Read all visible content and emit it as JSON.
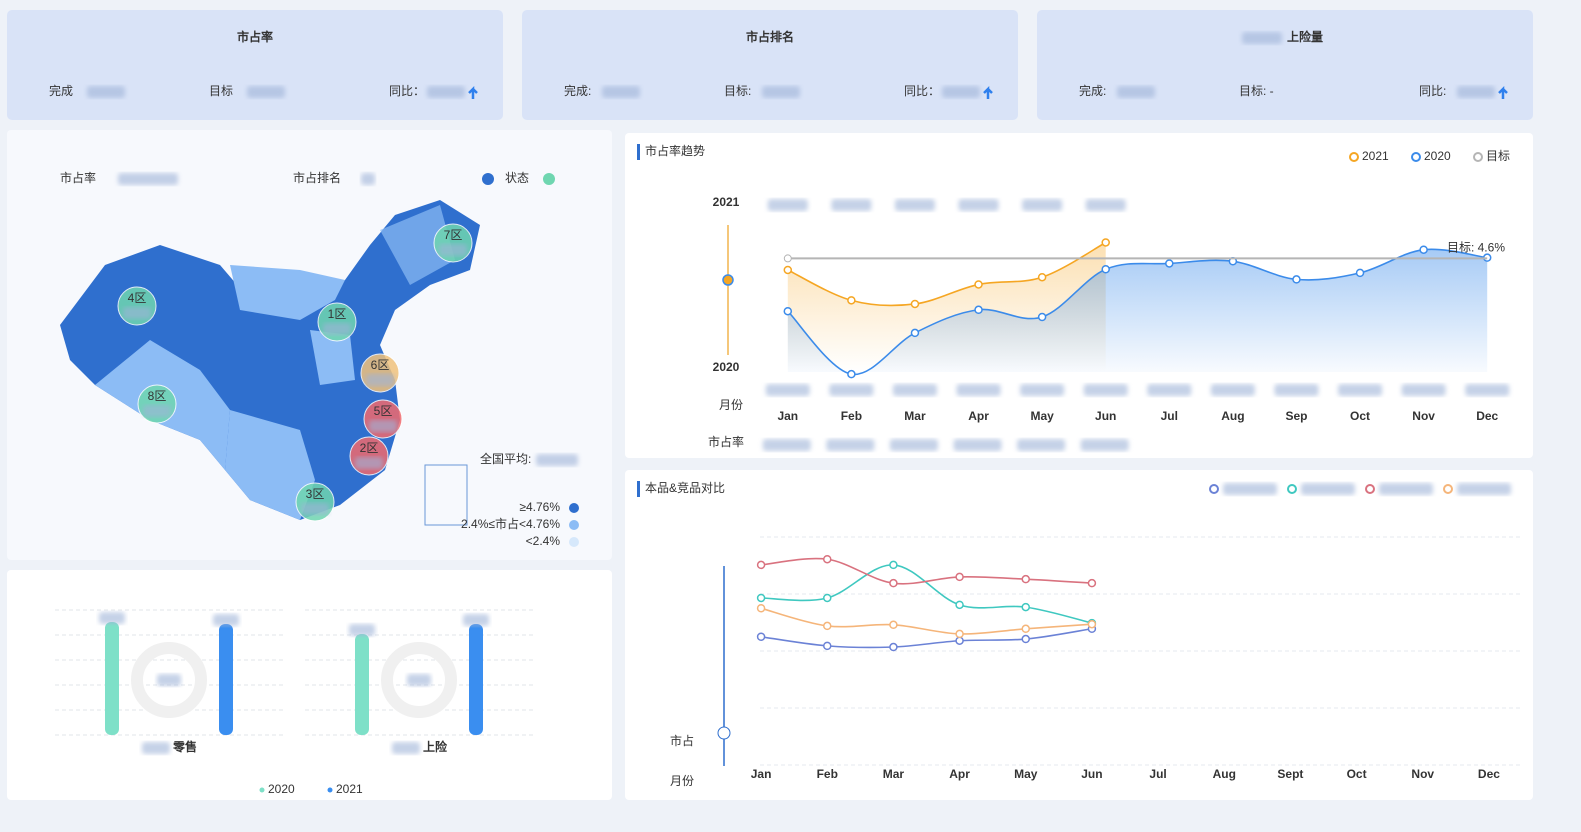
{
  "kpi_cards": [
    {
      "title": "市占率",
      "fields": [
        "完成",
        "目标",
        "同比："
      ]
    },
    {
      "title": "市占排名",
      "fields": [
        "完成:",
        "目标:",
        "同比："
      ]
    },
    {
      "title": "上险量",
      "fields": [
        "完成:",
        "目标: -",
        "同比:"
      ]
    }
  ],
  "map_panel": {
    "labels": [
      "市占率",
      "市占排名",
      "状态"
    ],
    "regions": [
      {
        "name": "7区",
        "color": "#6fd6b0"
      },
      {
        "name": "4区",
        "color": "#6fd6b0"
      },
      {
        "name": "1区",
        "color": "#6fd6b0"
      },
      {
        "name": "6区",
        "color": "#f0c27c"
      },
      {
        "name": "8区",
        "color": "#6fd6b0"
      },
      {
        "name": "5区",
        "color": "#f06a6e"
      },
      {
        "name": "2区",
        "color": "#f06a6e"
      },
      {
        "name": "3区",
        "color": "#6fd6b0"
      }
    ],
    "national_avg": "全国平均:",
    "legend": [
      {
        "label": "≥4.76%",
        "color": "#2f6fce"
      },
      {
        "label": "2.4%≤市占<4.76%",
        "color": "#8cbcf5"
      },
      {
        "label": "<2.4%",
        "color": "#d6e8fb"
      }
    ]
  },
  "chart_data": [
    {
      "type": "line",
      "title": "市占率趋势",
      "categories": [
        "Jan",
        "Feb",
        "Mar",
        "Apr",
        "May",
        "Jun",
        "Jul",
        "Aug",
        "Sep",
        "Oct",
        "Nov",
        "Dec"
      ],
      "series": [
        {
          "name": "2021",
          "color": "#f5a623",
          "values": [
            4.44,
            4.02,
            3.97,
            4.24,
            4.34,
            4.82,
            null,
            null,
            null,
            null,
            null,
            null
          ]
        },
        {
          "name": "2020",
          "color": "#3b8bea",
          "values": [
            3.87,
            3.0,
            3.57,
            3.89,
            3.79,
            4.45,
            4.53,
            4.56,
            4.31,
            4.4,
            4.72,
            4.61
          ]
        },
        {
          "name": "目标",
          "color": "#b5b5b5",
          "values": [
            4.6,
            4.6,
            4.6,
            4.6,
            4.6,
            4.6,
            4.6,
            4.6,
            4.6,
            4.6,
            4.6,
            4.6
          ]
        }
      ],
      "annotations": [
        "目标: 4.6%"
      ],
      "slider_labels": [
        "2021",
        "2020",
        "月份",
        "市占率"
      ],
      "ylim": [
        2.85,
        5.2
      ]
    },
    {
      "type": "line",
      "title": "本品&竞品对比",
      "categories": [
        "Jan",
        "Feb",
        "Mar",
        "Apr",
        "May",
        "Jun",
        "Jul",
        "Aug",
        "Sept",
        "Oct",
        "Nov",
        "Dec"
      ],
      "series": [
        {
          "color": "#6b82d6",
          "values": [
            2.25,
            2.09,
            2.07,
            2.18,
            2.21,
            2.39,
            null,
            null,
            null,
            null,
            null,
            null
          ]
        },
        {
          "color": "#3fc8c0",
          "values": [
            2.93,
            2.93,
            3.51,
            2.81,
            2.77,
            2.49,
            null,
            null,
            null,
            null,
            null,
            null
          ]
        },
        {
          "color": "#d9727f",
          "values": [
            3.51,
            3.61,
            3.19,
            3.3,
            3.26,
            3.19,
            null,
            null,
            null,
            null,
            null,
            null
          ]
        },
        {
          "color": "#f5b57a",
          "values": [
            2.75,
            2.44,
            2.46,
            2.3,
            2.39,
            2.47,
            null,
            null,
            null,
            null,
            null,
            null
          ]
        }
      ],
      "slider_labels": [
        "市占",
        "月份"
      ],
      "ylim": [
        0,
        4
      ],
      "yticks": [
        0,
        1,
        2,
        3,
        4
      ],
      "grid": true
    },
    {
      "type": "bar",
      "categories": [
        "零售",
        "上险"
      ],
      "series": [
        {
          "name": "2020",
          "color": "#7ee0c8",
          "values": [
            113,
            101
          ]
        },
        {
          "name": "2021",
          "color": "#3a8ef0",
          "values": [
            111,
            111
          ]
        }
      ],
      "ylim": [
        0,
        125
      ],
      "yticks": [
        0,
        25,
        50,
        75,
        100,
        125
      ],
      "grid": true
    }
  ]
}
